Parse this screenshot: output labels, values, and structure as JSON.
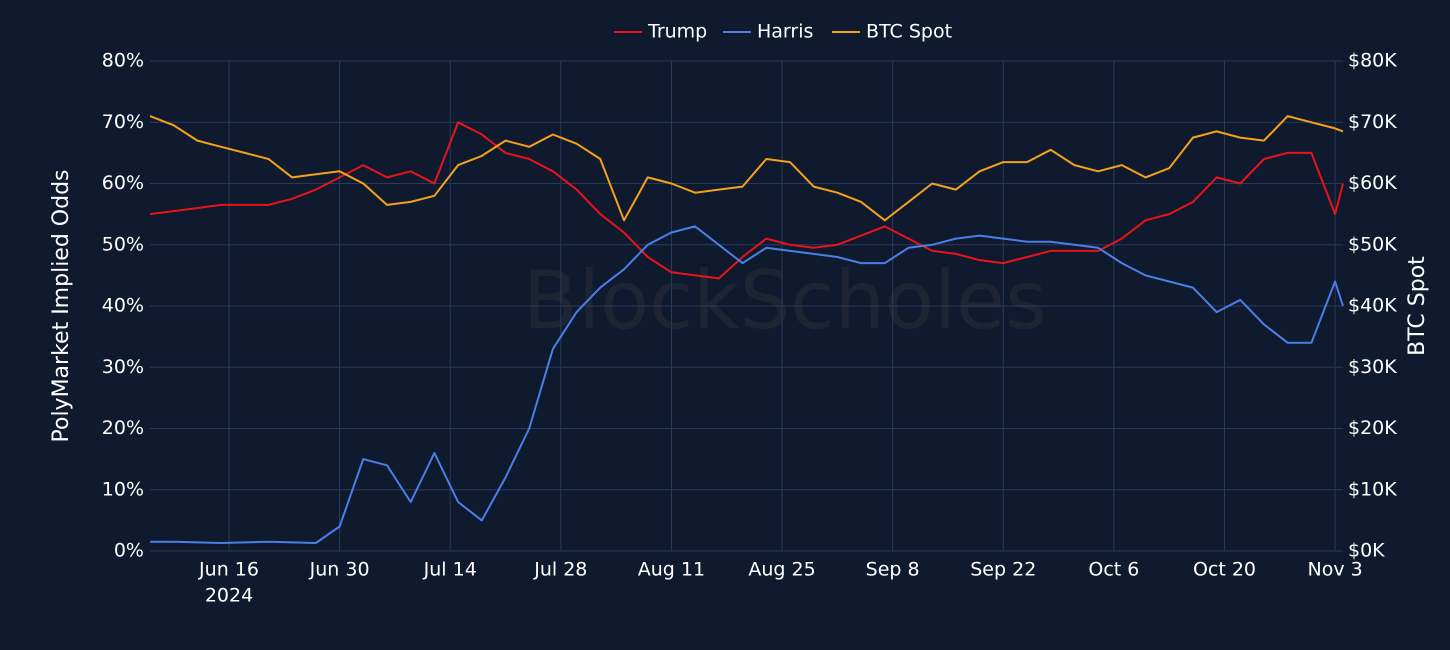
{
  "chart_data": {
    "type": "line",
    "watermark": "BlockScholes",
    "ylabel": "PolyMarket Implied Odds",
    "y2label": "BTC Spot",
    "legend": "top",
    "grid": true,
    "xlim": [
      "2024-06-06",
      "2024-11-04"
    ],
    "xticks": [
      {
        "value": "2024-06-16",
        "label": "Jun 16"
      },
      {
        "value": "2024-06-30",
        "label": "Jun 30"
      },
      {
        "value": "2024-07-14",
        "label": "Jul 14"
      },
      {
        "value": "2024-07-28",
        "label": "Jul 28"
      },
      {
        "value": "2024-08-11",
        "label": "Aug 11"
      },
      {
        "value": "2024-08-25",
        "label": "Aug 25"
      },
      {
        "value": "2024-09-08",
        "label": "Sep 8"
      },
      {
        "value": "2024-09-22",
        "label": "Sep 22"
      },
      {
        "value": "2024-10-06",
        "label": "Oct 6"
      },
      {
        "value": "2024-10-20",
        "label": "Oct 20"
      },
      {
        "value": "2024-11-03",
        "label": "Nov 3"
      }
    ],
    "xtick_sublabel": "2024",
    "ylim": [
      0,
      80
    ],
    "yticks": [
      {
        "value": 0,
        "label": "0%"
      },
      {
        "value": 10,
        "label": "10%"
      },
      {
        "value": 20,
        "label": "20%"
      },
      {
        "value": 30,
        "label": "30%"
      },
      {
        "value": 40,
        "label": "40%"
      },
      {
        "value": 50,
        "label": "50%"
      },
      {
        "value": 60,
        "label": "60%"
      },
      {
        "value": 70,
        "label": "70%"
      },
      {
        "value": 80,
        "label": "80%"
      }
    ],
    "y2lim": [
      0,
      80000
    ],
    "y2ticks": [
      {
        "value": 0,
        "label": "$0K"
      },
      {
        "value": 10000,
        "label": "$10K"
      },
      {
        "value": 20000,
        "label": "$20K"
      },
      {
        "value": 30000,
        "label": "$30K"
      },
      {
        "value": 40000,
        "label": "$40K"
      },
      {
        "value": 50000,
        "label": "$50K"
      },
      {
        "value": 60000,
        "label": "$60K"
      },
      {
        "value": 70000,
        "label": "$70K"
      },
      {
        "value": 80000,
        "label": "$80K"
      }
    ],
    "x": [
      "2024-06-06",
      "2024-06-09",
      "2024-06-12",
      "2024-06-15",
      "2024-06-18",
      "2024-06-21",
      "2024-06-24",
      "2024-06-27",
      "2024-06-30",
      "2024-07-03",
      "2024-07-06",
      "2024-07-09",
      "2024-07-12",
      "2024-07-15",
      "2024-07-18",
      "2024-07-21",
      "2024-07-24",
      "2024-07-27",
      "2024-07-30",
      "2024-08-02",
      "2024-08-05",
      "2024-08-08",
      "2024-08-11",
      "2024-08-14",
      "2024-08-17",
      "2024-08-20",
      "2024-08-23",
      "2024-08-26",
      "2024-08-29",
      "2024-09-01",
      "2024-09-04",
      "2024-09-07",
      "2024-09-10",
      "2024-09-13",
      "2024-09-16",
      "2024-09-19",
      "2024-09-22",
      "2024-09-25",
      "2024-09-28",
      "2024-10-01",
      "2024-10-04",
      "2024-10-07",
      "2024-10-10",
      "2024-10-13",
      "2024-10-16",
      "2024-10-19",
      "2024-10-22",
      "2024-10-25",
      "2024-10-28",
      "2024-10-31",
      "2024-11-03",
      "2024-11-04"
    ],
    "series": [
      {
        "name": "Trump",
        "color": "#e8141a",
        "values": [
          55,
          55.5,
          56,
          56.5,
          56.5,
          56.5,
          57.5,
          59,
          61,
          63,
          61,
          62,
          60,
          70,
          68,
          65,
          64,
          62,
          59,
          55,
          52,
          48,
          45.5,
          45,
          44.5,
          48,
          51,
          50,
          49.5,
          50,
          51.5,
          53,
          51,
          49,
          48.5,
          47.5,
          47,
          48,
          49,
          49,
          49,
          51,
          54,
          55,
          57,
          61,
          60,
          64,
          65,
          65,
          55,
          60
        ]
      },
      {
        "name": "Harris",
        "color": "#4a7fe8",
        "values": [
          1.5,
          1.5,
          1.4,
          1.3,
          1.4,
          1.5,
          1.4,
          1.3,
          4,
          15,
          14,
          8,
          16,
          8,
          5,
          12,
          20,
          33,
          39,
          43,
          46,
          50,
          52,
          53,
          50,
          47,
          49.5,
          49,
          48.5,
          48,
          47,
          47,
          49.5,
          50,
          51,
          51.5,
          51,
          50.5,
          50.5,
          50,
          49.5,
          47,
          45,
          44,
          43,
          39,
          41,
          37,
          34,
          34,
          44,
          40
        ]
      },
      {
        "name": "BTC Spot",
        "color": "#f5a21b",
        "axis": "y2",
        "values": [
          71000,
          69500,
          67000,
          66000,
          65000,
          64000,
          61000,
          61500,
          62000,
          60000,
          56500,
          57000,
          58000,
          63000,
          64500,
          67000,
          66000,
          68000,
          66500,
          64000,
          54000,
          61000,
          60000,
          58500,
          59000,
          59500,
          64000,
          63500,
          59500,
          58500,
          57000,
          54000,
          57000,
          60000,
          59000,
          62000,
          63500,
          63500,
          65500,
          63000,
          62000,
          63000,
          61000,
          62500,
          67500,
          68500,
          67500,
          67000,
          71000,
          70000,
          69000,
          68500
        ]
      }
    ]
  }
}
